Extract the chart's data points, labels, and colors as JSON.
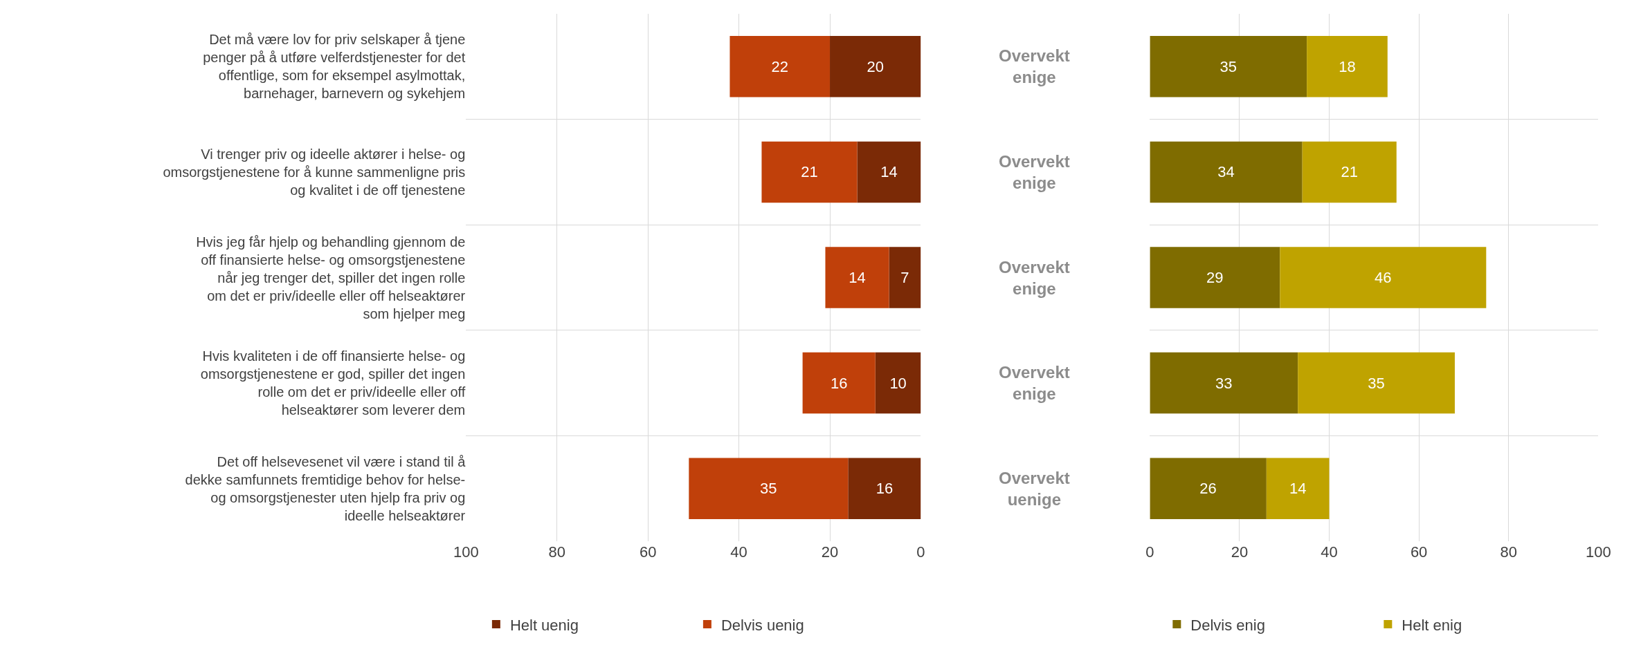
{
  "chart_data": [
    {
      "type": "bar",
      "orientation": "horizontal",
      "stacked": true,
      "categories": [
        "Det må være lov for priv selskaper å tjene penger på å utføre velferdstjenester for det offentlige, som for eksempel asylmottak, barnehager, barnevern og sykehjem",
        "Vi trenger priv og ideelle aktører i helse- og omsorgstjenestene for å kunne sammenligne pris og kvalitet i de off tjenestene",
        "Hvis jeg får hjelp og behandling gjennom de off finansierte helse- og omsorgstjenestene når jeg trenger det, spiller det ingen rolle om det er priv/ideelle eller off helseaktører som hjelper meg",
        "Hvis kvaliteten i de off finansierte helse- og omsorgstjenestene er god, spiller det ingen rolle om det er priv/ideelle eller off helseaktører som leverer dem",
        "Det off helsevesenet vil være i stand til å dekke samfunnets fremtidige behov for helse- og omsorgstjenester uten hjelp fra priv og ideelle helseaktører"
      ],
      "series": [
        {
          "name": "Helt uenig",
          "color": "#7b2a06",
          "values": [
            20,
            14,
            7,
            10,
            16
          ]
        },
        {
          "name": "Delvis uenig",
          "color": "#c0400a",
          "values": [
            22,
            21,
            14,
            16,
            35
          ]
        }
      ],
      "xlim": [
        100,
        0
      ],
      "xticks": [
        100,
        80,
        60,
        40,
        20,
        0
      ],
      "grid": true,
      "legend": "bottom",
      "data_labels": true,
      "annotations": [
        "Overvekt enige",
        "Overvekt enige",
        "Overvekt enige",
        "Overvekt enige",
        "Overvekt uenige"
      ]
    },
    {
      "type": "bar",
      "orientation": "horizontal",
      "stacked": true,
      "categories": [
        "Det må være lov for priv selskaper å tjene penger på å utføre velferdstjenester for det offentlige, som for eksempel asylmottak, barnehager, barnevern og sykehjem",
        "Vi trenger priv og ideelle aktører i helse- og omsorgstjenestene for å kunne sammenligne pris og kvalitet i de off tjenestene",
        "Hvis jeg får hjelp og behandling gjennom de off finansierte helse- og omsorgstjenestene når jeg trenger det, spiller det ingen rolle om det er priv/ideelle eller off helseaktører som hjelper meg",
        "Hvis kvaliteten i de off finansierte helse- og omsorgstjenestene er god, spiller det ingen rolle om det er priv/ideelle eller off helseaktører som leverer dem",
        "Det off helsevesenet vil være i stand til å dekke samfunnets fremtidige behov for helse- og omsorgstjenester uten hjelp fra priv og ideelle helseaktører"
      ],
      "series": [
        {
          "name": "Delvis enig",
          "color": "#7f6c00",
          "values": [
            35,
            34,
            29,
            33,
            26
          ]
        },
        {
          "name": "Helt enig",
          "color": "#bfa300",
          "values": [
            18,
            21,
            46,
            35,
            14
          ]
        }
      ],
      "xlim": [
        0,
        100
      ],
      "xticks": [
        0,
        20,
        40,
        60,
        80,
        100
      ],
      "grid": true,
      "legend": "bottom",
      "data_labels": true,
      "tick_labels": "x"
    }
  ]
}
